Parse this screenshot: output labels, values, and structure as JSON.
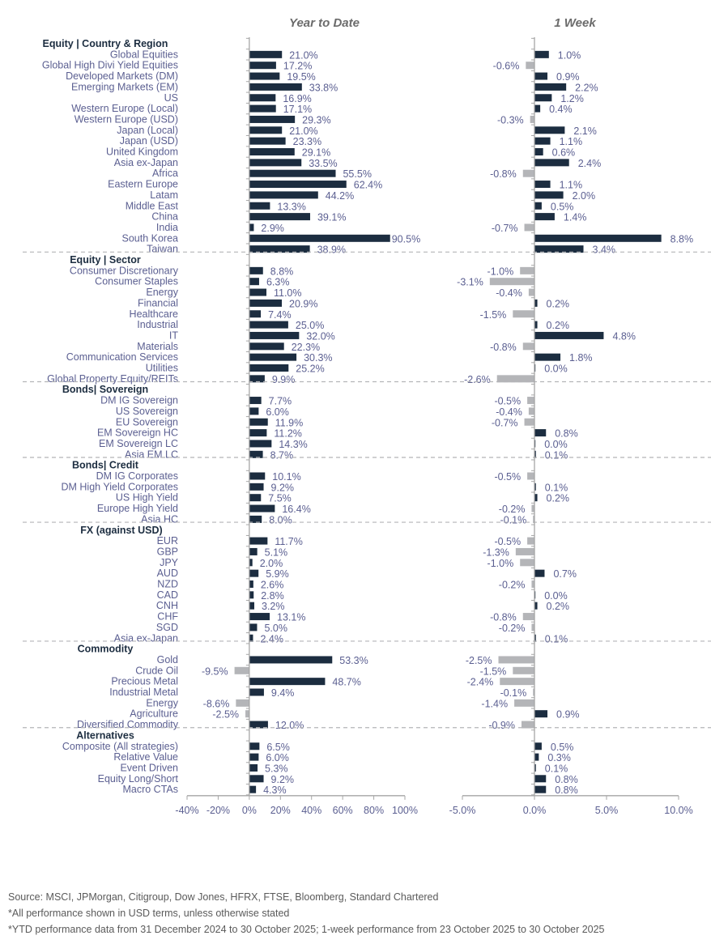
{
  "chart_data": {
    "type": "bar",
    "orientation": "horizontal",
    "panels": [
      {
        "key": "ytd",
        "title": "Year to Date",
        "xlim": [
          -40,
          100
        ],
        "ticks": [
          -40,
          -20,
          0,
          20,
          40,
          60,
          80,
          100
        ],
        "tick_labels": [
          "-40%",
          "-20%",
          "0%",
          "20%",
          "40%",
          "60%",
          "80%",
          "100%"
        ]
      },
      {
        "key": "wk",
        "title": "1 Week",
        "xlim": [
          -5,
          10
        ],
        "ticks": [
          -5,
          0,
          5,
          10
        ],
        "tick_labels": [
          "-5.0%",
          "0.0%",
          "5.0%",
          "10.0%"
        ]
      }
    ],
    "colors": {
      "positive": "#1c2d40",
      "negative": "#b4b5b8",
      "label": "#5b5f91",
      "header": "#1c2d40"
    },
    "sections": [
      {
        "name": "Equity | Country & Region",
        "items": [
          {
            "label": "Global Equities",
            "ytd": 21.0,
            "wk": 1.0
          },
          {
            "label": "Global High Divi Yield Equities",
            "ytd": 17.2,
            "wk": -0.6
          },
          {
            "label": "Developed Markets (DM)",
            "ytd": 19.5,
            "wk": 0.9
          },
          {
            "label": "Emerging Markets (EM)",
            "ytd": 33.8,
            "wk": 2.2
          },
          {
            "label": "US",
            "ytd": 16.9,
            "wk": 1.2
          },
          {
            "label": "Western Europe (Local)",
            "ytd": 17.1,
            "wk": 0.4
          },
          {
            "label": "Western Europe (USD)",
            "ytd": 29.3,
            "wk": -0.3
          },
          {
            "label": "Japan (Local)",
            "ytd": 21.0,
            "wk": 2.1
          },
          {
            "label": "Japan (USD)",
            "ytd": 23.3,
            "wk": 1.1
          },
          {
            "label": "United Kingdom",
            "ytd": 29.1,
            "wk": 0.6
          },
          {
            "label": "Asia ex-Japan",
            "ytd": 33.5,
            "wk": 2.4
          },
          {
            "label": "Africa",
            "ytd": 55.5,
            "wk": -0.8
          },
          {
            "label": "Eastern Europe",
            "ytd": 62.4,
            "wk": 1.1
          },
          {
            "label": "Latam",
            "ytd": 44.2,
            "wk": 2.0
          },
          {
            "label": "Middle East",
            "ytd": 13.3,
            "wk": 0.5
          },
          {
            "label": "China",
            "ytd": 39.1,
            "wk": 1.4
          },
          {
            "label": "India",
            "ytd": 2.9,
            "wk": -0.7
          },
          {
            "label": "South Korea",
            "ytd": 90.5,
            "wk": 8.8
          },
          {
            "label": "Taiwan",
            "ytd": 38.9,
            "wk": 3.4
          }
        ]
      },
      {
        "name": "Equity | Sector",
        "items": [
          {
            "label": "Consumer Discretionary",
            "ytd": 8.8,
            "wk": -1.0
          },
          {
            "label": "Consumer Staples",
            "ytd": 6.3,
            "wk": -3.1
          },
          {
            "label": "Energy",
            "ytd": 11.0,
            "wk": -0.4
          },
          {
            "label": "Financial",
            "ytd": 20.9,
            "wk": 0.2
          },
          {
            "label": "Healthcare",
            "ytd": 7.4,
            "wk": -1.5
          },
          {
            "label": "Industrial",
            "ytd": 25.0,
            "wk": 0.2
          },
          {
            "label": "IT",
            "ytd": 32.0,
            "wk": 4.8
          },
          {
            "label": "Materials",
            "ytd": 22.3,
            "wk": -0.8
          },
          {
            "label": "Communication Services",
            "ytd": 30.3,
            "wk": 1.8
          },
          {
            "label": "Utilities",
            "ytd": 25.2,
            "wk": 0.0
          },
          {
            "label": "Global Property Equity/REITs",
            "ytd": 9.9,
            "wk": -2.6
          }
        ]
      },
      {
        "name": "Bonds| Sovereign",
        "items": [
          {
            "label": "DM IG Sovereign",
            "ytd": 7.7,
            "wk": -0.5
          },
          {
            "label": "US Sovereign",
            "ytd": 6.0,
            "wk": -0.4
          },
          {
            "label": "EU Sovereign",
            "ytd": 11.9,
            "wk": -0.7
          },
          {
            "label": "EM Sovereign HC",
            "ytd": 11.2,
            "wk": 0.8
          },
          {
            "label": "EM Sovereign LC",
            "ytd": 14.3,
            "wk": 0.0
          },
          {
            "label": "Asia EM LC",
            "ytd": 8.7,
            "wk": 0.1
          }
        ]
      },
      {
        "name": "Bonds| Credit",
        "items": [
          {
            "label": "DM IG Corporates",
            "ytd": 10.1,
            "wk": -0.5
          },
          {
            "label": "DM High Yield Corporates",
            "ytd": 9.2,
            "wk": 0.1
          },
          {
            "label": "US High Yield",
            "ytd": 7.5,
            "wk": 0.2
          },
          {
            "label": "Europe High Yield",
            "ytd": 16.4,
            "wk": -0.2
          },
          {
            "label": "Asia HC",
            "ytd": 8.0,
            "wk": -0.1
          }
        ]
      },
      {
        "name": "FX (against USD)",
        "items": [
          {
            "label": "EUR",
            "ytd": 11.7,
            "wk": -0.5
          },
          {
            "label": "GBP",
            "ytd": 5.1,
            "wk": -1.3
          },
          {
            "label": "JPY",
            "ytd": 2.0,
            "wk": -1.0
          },
          {
            "label": "AUD",
            "ytd": 5.9,
            "wk": 0.7
          },
          {
            "label": "NZD",
            "ytd": 2.6,
            "wk": -0.2
          },
          {
            "label": "CAD",
            "ytd": 2.8,
            "wk": 0.0
          },
          {
            "label": "CNH",
            "ytd": 3.2,
            "wk": 0.2
          },
          {
            "label": "CHF",
            "ytd": 13.1,
            "wk": -0.8
          },
          {
            "label": "SGD",
            "ytd": 5.0,
            "wk": -0.2
          },
          {
            "label": "Asia ex-Japan",
            "ytd": 2.4,
            "wk": 0.1
          }
        ]
      },
      {
        "name": "Commodity",
        "items": [
          {
            "label": "Gold",
            "ytd": 53.3,
            "wk": -2.5
          },
          {
            "label": "Crude Oil",
            "ytd": -9.5,
            "wk": -1.5
          },
          {
            "label": "Precious Metal",
            "ytd": 48.7,
            "wk": -2.4
          },
          {
            "label": "Industrial Metal",
            "ytd": 9.4,
            "wk": -0.1
          },
          {
            "label": "Energy",
            "ytd": -8.6,
            "wk": -1.4
          },
          {
            "label": "Agriculture",
            "ytd": -2.5,
            "wk": 0.9
          },
          {
            "label": "Diversified Commodity",
            "ytd": 12.0,
            "wk": -0.9
          }
        ]
      },
      {
        "name": "Alternatives",
        "items": [
          {
            "label": "Composite (All strategies)",
            "ytd": 6.5,
            "wk": 0.5
          },
          {
            "label": "Relative Value",
            "ytd": 6.0,
            "wk": 0.3
          },
          {
            "label": "Event Driven",
            "ytd": 5.3,
            "wk": 0.1
          },
          {
            "label": "Equity Long/Short",
            "ytd": 9.2,
            "wk": 0.8
          },
          {
            "label": "Macro CTAs",
            "ytd": 4.3,
            "wk": 0.8
          }
        ]
      }
    ]
  },
  "footnotes": {
    "source": "Source: MSCI, JPMorgan, Citigroup, Dow Jones, HFRX, FTSE, Bloomberg, Standard Chartered",
    "note1": "*All performance shown in USD terms, unless otherwise stated",
    "note2": "*YTD performance data from 31 December 2024 to 30 October 2025; 1-week performance from 23 October 2025 to 30 October 2025"
  }
}
